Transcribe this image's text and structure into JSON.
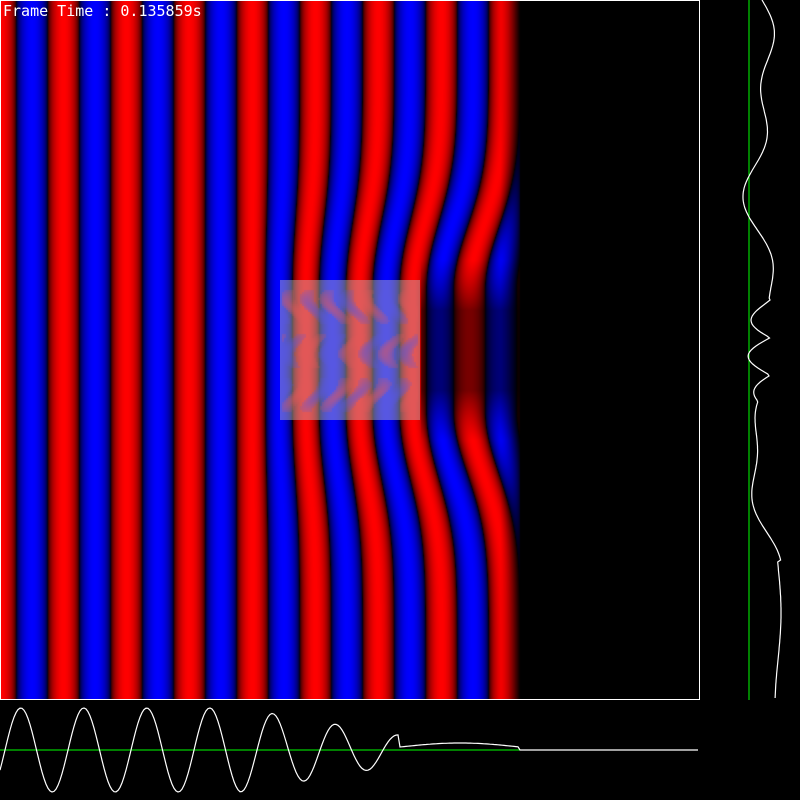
{
  "hud": {
    "frame_time_label": "Frame Time : 0.135859s"
  },
  "colors": {
    "positive": "#ff0000",
    "negative": "#0000ff",
    "background": "#000000",
    "frame": "#ffffff",
    "obstacle": "#c0c0c0",
    "axis": "#00ff00",
    "trace": "#ffffff"
  }
}
